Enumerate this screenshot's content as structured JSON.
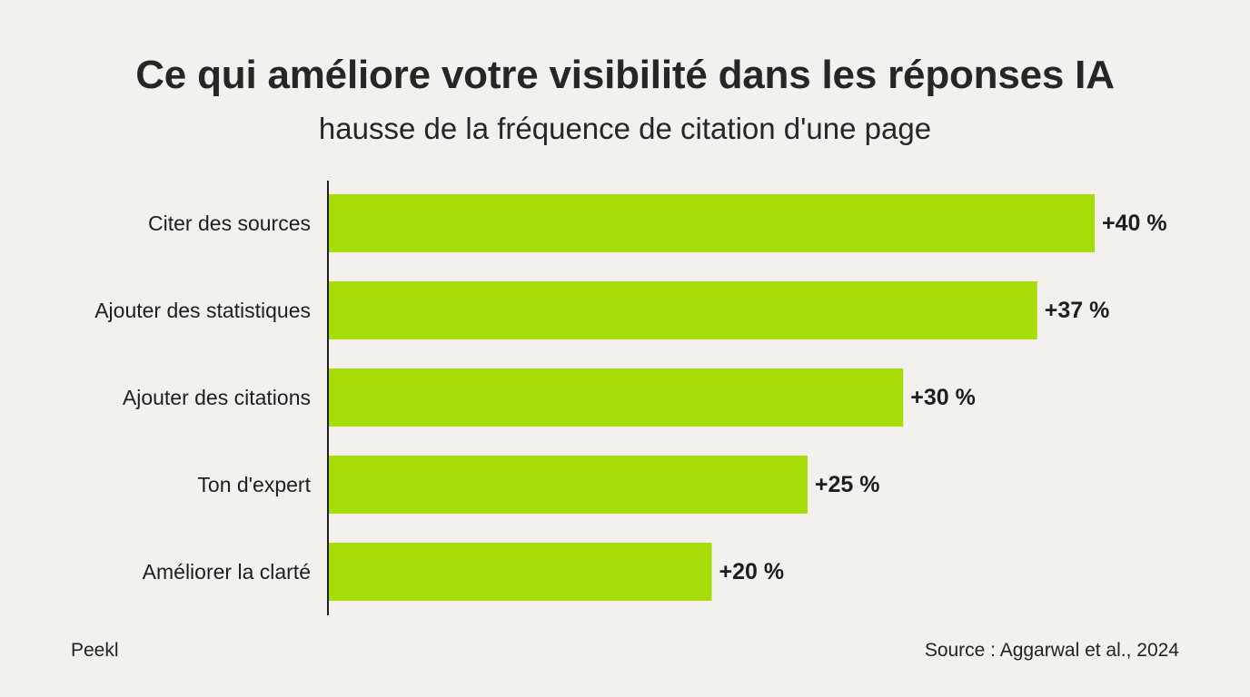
{
  "header": {
    "title": "Ce qui améliore votre visibilité dans les réponses IA",
    "subtitle": "hausse de la fréquence de citation d'une page"
  },
  "footer": {
    "brand": "Peekl",
    "source": "Source : Aggarwal et al., 2024"
  },
  "colors": {
    "background": "#f2f1ed",
    "bar": "#a8dc08",
    "text": "#1e1e1e",
    "axis": "#1e1e1e"
  },
  "chart_data": {
    "type": "bar",
    "orientation": "horizontal",
    "categories": [
      "Citer des sources",
      "Ajouter des statistiques",
      "Ajouter des citations",
      "Ton d'expert",
      "Améliorer la clarté"
    ],
    "values": [
      40,
      37,
      30,
      25,
      20
    ],
    "data_labels": [
      "+40 %",
      "+37 %",
      "+30 %",
      "+25 %",
      "+20 %"
    ],
    "title": "Ce qui améliore votre visibilité dans les réponses IA",
    "subtitle": "hausse de la fréquence de citation d'une page",
    "xlabel": "",
    "ylabel": "",
    "xlim": [
      0,
      40
    ],
    "grid": false,
    "legend": "none"
  }
}
